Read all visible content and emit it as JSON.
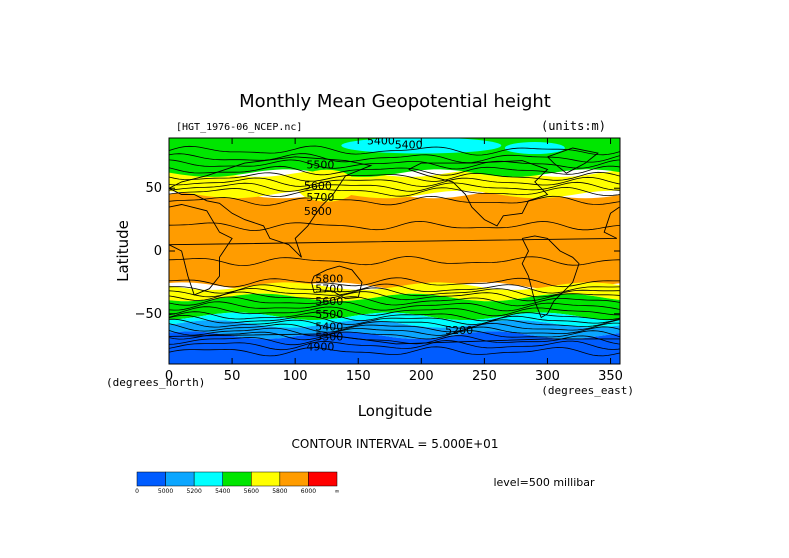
{
  "chart_data": {
    "type": "heatmap",
    "title": "Monthly Mean Geopotential height",
    "dataset_label": "[HGT_1976-06_NCEP.nc]",
    "units_label": "(units:m)",
    "xlabel": "Longitude",
    "x_unit_label": "(degrees_east)",
    "ylabel": "Latitude",
    "y_unit_label": "(degrees_north)",
    "xlim": [
      0,
      357.5
    ],
    "ylim": [
      -90,
      90
    ],
    "x_ticks": [
      0,
      50,
      100,
      150,
      200,
      250,
      300,
      350
    ],
    "y_ticks": [
      50,
      0,
      -50
    ],
    "contour_interval_text": "CONTOUR INTERVAL = 5.000E+01",
    "level_text": "level=500 millibar",
    "contour_labels": [
      {
        "text": "5400",
        "lon": 168,
        "lat": 88
      },
      {
        "text": "5400",
        "lon": 190,
        "lat": 85
      },
      {
        "text": "5500",
        "lon": 120,
        "lat": 69
      },
      {
        "text": "5600",
        "lon": 118,
        "lat": 52
      },
      {
        "text": "5700",
        "lon": 120,
        "lat": 43
      },
      {
        "text": "5800",
        "lon": 118,
        "lat": 32
      },
      {
        "text": "5800",
        "lon": 127,
        "lat": -22
      },
      {
        "text": "5700",
        "lon": 127,
        "lat": -30
      },
      {
        "text": "5600",
        "lon": 127,
        "lat": -40
      },
      {
        "text": "5500",
        "lon": 127,
        "lat": -50
      },
      {
        "text": "5400",
        "lon": 127,
        "lat": -60
      },
      {
        "text": "5300",
        "lon": 127,
        "lat": -68
      },
      {
        "text": "5200",
        "lon": 230,
        "lat": -63
      },
      {
        "text": "4900",
        "lon": 120,
        "lat": -76
      }
    ],
    "colorbar": {
      "bounds": [
        "0",
        "5000",
        "5200",
        "5400",
        "5600",
        "5800",
        "6000",
        "∞"
      ],
      "colors": [
        "#005cff",
        "#0ba6ff",
        "#00ffff",
        "#00e600",
        "#ffff00",
        "#ff9c00",
        "#ff0000"
      ]
    },
    "fill_levels_note_colors": {
      "deep_blue": "#005cff",
      "light_blue": "#0ba6ff",
      "cyan": "#00ffff",
      "green": "#00e600",
      "yellow": "#ffff00",
      "orange": "#ff9c00"
    }
  }
}
